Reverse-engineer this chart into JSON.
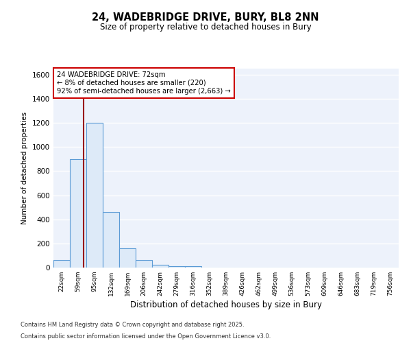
{
  "title": "24, WADEBRIDGE DRIVE, BURY, BL8 2NN",
  "subtitle": "Size of property relative to detached houses in Bury",
  "xlabel": "Distribution of detached houses by size in Bury",
  "ylabel": "Number of detached properties",
  "bar_color": "#ddeaf8",
  "bar_edge_color": "#5b9bd5",
  "bar_edge_width": 0.8,
  "categories": [
    "22sqm",
    "59sqm",
    "95sqm",
    "132sqm",
    "169sqm",
    "206sqm",
    "242sqm",
    "279sqm",
    "316sqm",
    "352sqm",
    "389sqm",
    "426sqm",
    "462sqm",
    "499sqm",
    "536sqm",
    "573sqm",
    "609sqm",
    "646sqm",
    "683sqm",
    "719sqm",
    "756sqm"
  ],
  "values": [
    60,
    900,
    1200,
    460,
    160,
    60,
    20,
    10,
    10,
    0,
    0,
    0,
    0,
    0,
    0,
    0,
    0,
    0,
    0,
    0,
    0
  ],
  "ylim": [
    0,
    1650
  ],
  "yticks": [
    0,
    200,
    400,
    600,
    800,
    1000,
    1200,
    1400,
    1600
  ],
  "property_line_x": 1.35,
  "annotation_text": "24 WADEBRIDGE DRIVE: 72sqm\n← 8% of detached houses are smaller (220)\n92% of semi-detached houses are larger (2,663) →",
  "annotation_box_color": "#ffffff",
  "annotation_edge_color": "#cc0000",
  "property_line_color": "#990000",
  "background_color": "#edf2fb",
  "grid_color": "#ffffff",
  "footer_line1": "Contains HM Land Registry data © Crown copyright and database right 2025.",
  "footer_line2": "Contains public sector information licensed under the Open Government Licence v3.0."
}
